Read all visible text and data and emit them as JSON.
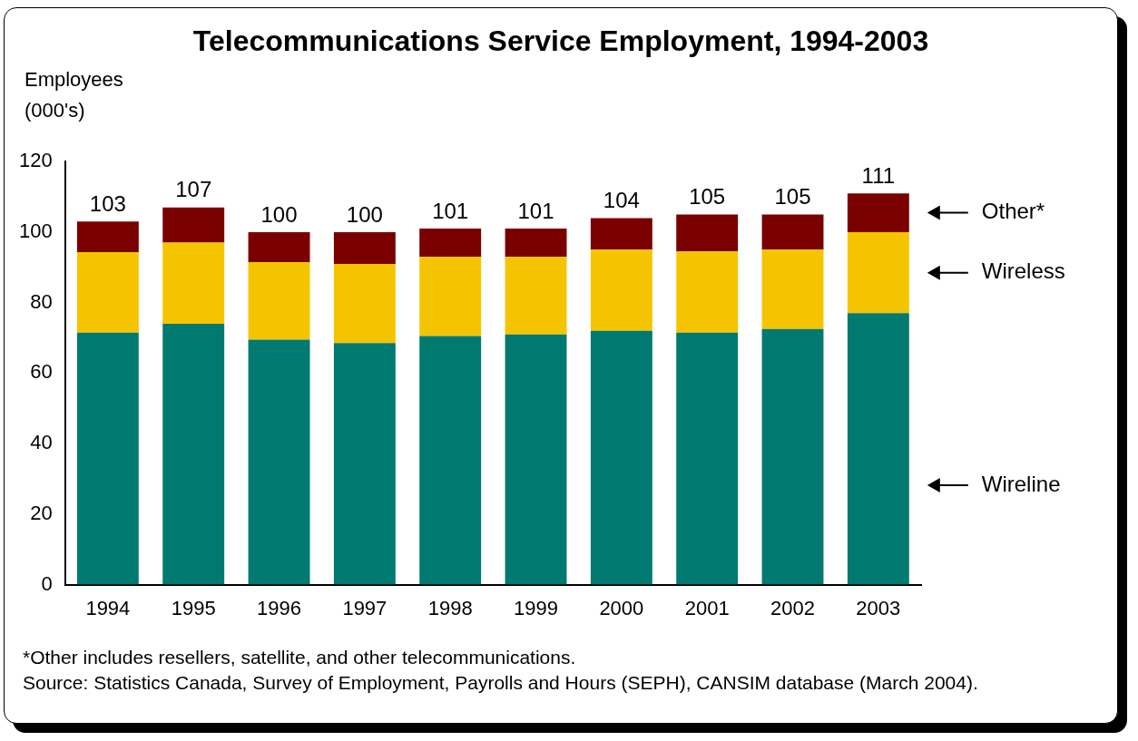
{
  "chart_data": {
    "type": "bar",
    "title": "Telecommunications Service Employment, 1994-2003",
    "ylabel": "Employees (000's)",
    "stacked": true,
    "categories": [
      "1994",
      "1995",
      "1996",
      "1997",
      "1998",
      "1999",
      "2000",
      "2001",
      "2002",
      "2003"
    ],
    "series": [
      {
        "name": "Wireline",
        "color": "#007a70",
        "values": [
          71.5,
          74,
          69.5,
          68.5,
          70.5,
          71,
          72,
          71.5,
          72.5,
          77
        ]
      },
      {
        "name": "Wireless",
        "color": "#f5c400",
        "values": [
          22.8,
          23,
          22,
          22.5,
          22.5,
          22,
          23,
          23,
          22.5,
          23
        ]
      },
      {
        "name": "Other*",
        "color": "#7a0000",
        "values": [
          8.7,
          10,
          8.5,
          9,
          8,
          8,
          9,
          10.5,
          10,
          11
        ]
      }
    ],
    "totals": [
      "103",
      "107",
      "100",
      "100",
      "101",
      "101",
      "104",
      "105",
      "105",
      "111"
    ],
    "ylim": [
      0,
      120
    ],
    "yticks": [
      0,
      20,
      40,
      60,
      80,
      100,
      120
    ],
    "annotations": [
      "*Other includes resellers, satellite, and other telecommunications.",
      "Source: Statistics Canada, Survey of Employment, Payrolls and Hours (SEPH), CANSIM database (March 2004)."
    ]
  }
}
